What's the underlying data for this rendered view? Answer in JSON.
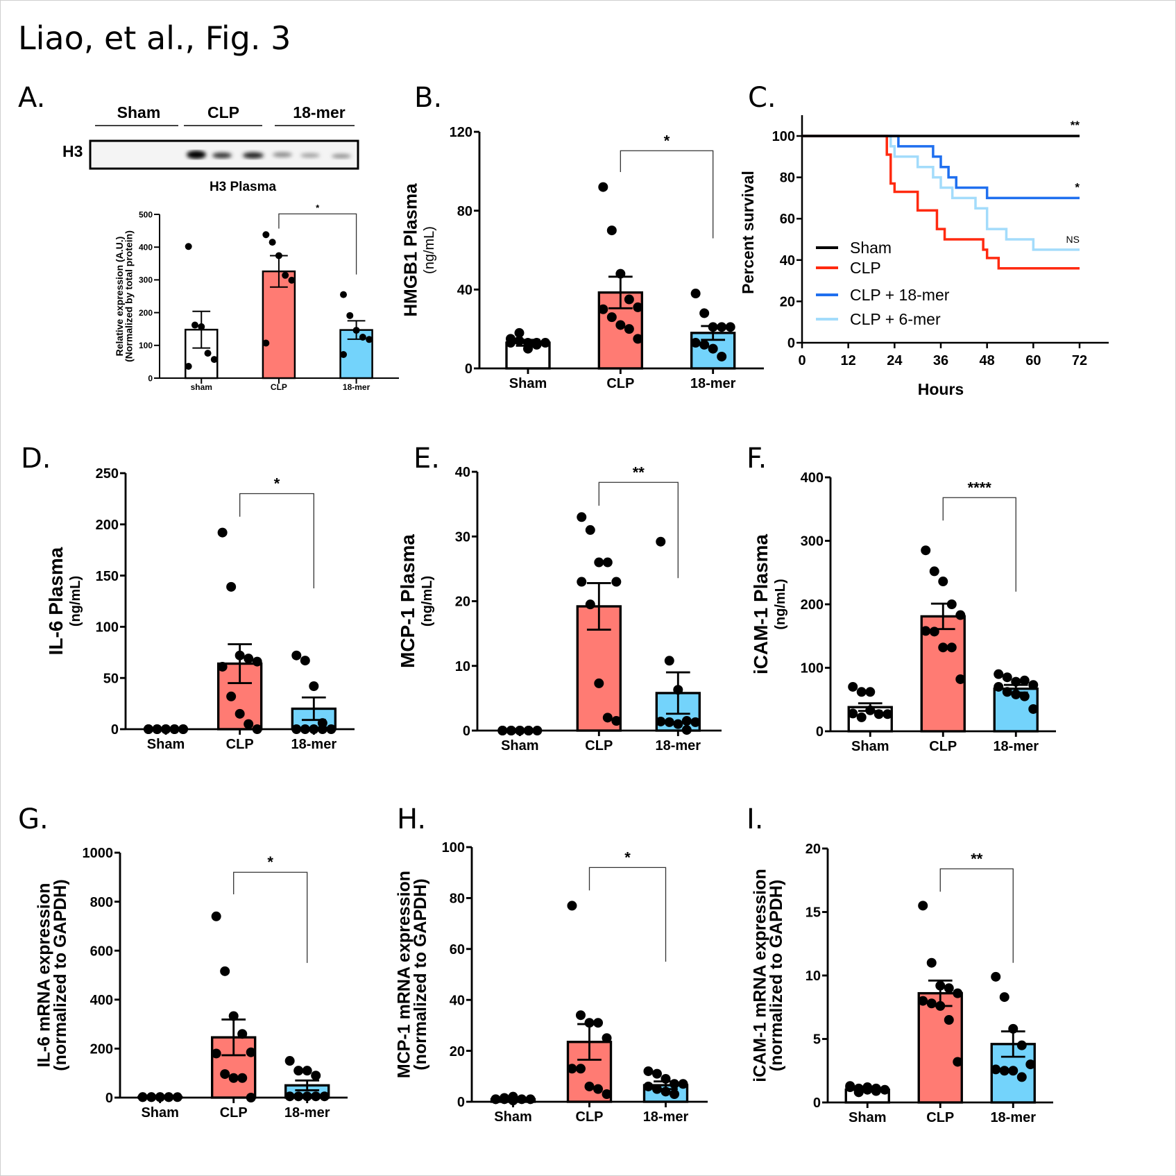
{
  "figure_title": "Liao, et al., Fig. 3",
  "colors": {
    "sham": "#ffffff",
    "clp": "#ff7b73",
    "mer18": "#73d3fb",
    "survival_sham": "#000000",
    "survival_clp": "#ff2a10",
    "survival_18mer": "#1f6fef",
    "survival_6mer": "#a3dcfb"
  },
  "blot": {
    "letter": "A.",
    "groups": [
      "Sham",
      "CLP",
      "18-mer"
    ],
    "band_label": "H3",
    "caption": "H3 Plasma"
  },
  "chart_data": [
    {
      "id": "A",
      "letter": "",
      "type": "bar",
      "title": "",
      "ylabel": "Relative expression (A.U.)",
      "ylabel2": "(Normalized by total protein)",
      "categories": [
        "sham",
        "CLP",
        "18-mer"
      ],
      "ylim": [
        0,
        500
      ],
      "yticks": [
        0,
        100,
        200,
        300,
        400,
        500
      ],
      "means": [
        148,
        326,
        147
      ],
      "sem": [
        56,
        48,
        28
      ],
      "points": [
        [
          402,
          162,
          157,
          76,
          57,
          36
        ],
        [
          438,
          415,
          374,
          314,
          299,
          107
        ],
        [
          255,
          191,
          146,
          125,
          118,
          72
        ]
      ],
      "significance": {
        "from": 1,
        "to": 2,
        "label": "*"
      }
    },
    {
      "id": "B",
      "letter": "B.",
      "type": "bar",
      "ylabel": "HMGB1 Plasma",
      "ylabel2": "(ng/mL)",
      "categories": [
        "Sham",
        "CLP",
        "18-mer"
      ],
      "ylim": [
        0,
        120
      ],
      "yticks": [
        0,
        40,
        80,
        120
      ],
      "means": [
        13,
        38.5,
        18
      ],
      "sem": [
        1.5,
        8,
        3.5
      ],
      "points": [
        [
          15,
          18,
          13,
          13,
          13,
          13,
          14,
          10,
          12
        ],
        [
          92,
          70,
          48,
          35,
          31,
          30,
          26,
          22,
          20,
          15
        ],
        [
          38,
          28,
          21,
          21,
          21,
          13,
          12,
          10,
          6
        ]
      ],
      "significance": {
        "from": 1,
        "to": 2,
        "label": "*"
      }
    },
    {
      "id": "C",
      "letter": "C.",
      "type": "line",
      "ylabel": "Percent survival",
      "xlabel": "Hours",
      "xlim": [
        0,
        72
      ],
      "xticks": [
        0,
        12,
        24,
        36,
        48,
        60,
        72
      ],
      "ylim": [
        0,
        100
      ],
      "yticks": [
        0,
        20,
        40,
        60,
        80,
        100
      ],
      "legend": "center-left",
      "series": [
        {
          "name": "Sham",
          "color_key": "survival_sham",
          "annotation": "**",
          "steps": [
            [
              0,
              100
            ],
            [
              72,
              100
            ]
          ]
        },
        {
          "name": "CLP",
          "color_key": "survival_clp",
          "annotation": "",
          "steps": [
            [
              0,
              100
            ],
            [
              22,
              100
            ],
            [
              22,
              91
            ],
            [
              23,
              91
            ],
            [
              23,
              77
            ],
            [
              24,
              77
            ],
            [
              24,
              73
            ],
            [
              30,
              73
            ],
            [
              30,
              64
            ],
            [
              35,
              64
            ],
            [
              35,
              55
            ],
            [
              37,
              55
            ],
            [
              37,
              50
            ],
            [
              47,
              50
            ],
            [
              47,
              45
            ],
            [
              48,
              45
            ],
            [
              48,
              41
            ],
            [
              51,
              41
            ],
            [
              51,
              36
            ],
            [
              72,
              36
            ]
          ]
        },
        {
          "name": "CLP + 18-mer",
          "color_key": "survival_18mer",
          "annotation": "*",
          "steps": [
            [
              0,
              100
            ],
            [
              25,
              100
            ],
            [
              25,
              95
            ],
            [
              34,
              95
            ],
            [
              34,
              90
            ],
            [
              36,
              90
            ],
            [
              36,
              85
            ],
            [
              38,
              85
            ],
            [
              38,
              80
            ],
            [
              40,
              80
            ],
            [
              40,
              75
            ],
            [
              48,
              75
            ],
            [
              48,
              70
            ],
            [
              72,
              70
            ]
          ]
        },
        {
          "name": "CLP + 6-mer",
          "color_key": "survival_6mer",
          "annotation": "NS",
          "steps": [
            [
              0,
              100
            ],
            [
              23,
              100
            ],
            [
              23,
              95
            ],
            [
              24,
              95
            ],
            [
              24,
              90
            ],
            [
              30,
              90
            ],
            [
              30,
              85
            ],
            [
              34,
              85
            ],
            [
              34,
              80
            ],
            [
              36,
              80
            ],
            [
              36,
              75
            ],
            [
              39,
              75
            ],
            [
              39,
              70
            ],
            [
              45,
              70
            ],
            [
              45,
              65
            ],
            [
              48,
              65
            ],
            [
              48,
              55
            ],
            [
              53,
              55
            ],
            [
              53,
              50
            ],
            [
              60,
              50
            ],
            [
              60,
              45
            ],
            [
              72,
              45
            ]
          ]
        }
      ]
    },
    {
      "id": "D",
      "letter": "D.",
      "type": "bar",
      "ylabel": "IL-6 Plasma",
      "ylabel2": "(ng/mL)",
      "categories": [
        "Sham",
        "CLP",
        "18-mer"
      ],
      "ylim": [
        0,
        250
      ],
      "yticks": [
        0,
        50,
        100,
        150,
        200,
        250
      ],
      "means": [
        0,
        64,
        20
      ],
      "sem": [
        0,
        19,
        11
      ],
      "points": [
        [
          0,
          0,
          0,
          0,
          0,
          0,
          0,
          0,
          0,
          0
        ],
        [
          192,
          139,
          72,
          69,
          66,
          61,
          32,
          15,
          5,
          0
        ],
        [
          72,
          67,
          42,
          6,
          0,
          0,
          0,
          0,
          0
        ]
      ],
      "significance": {
        "from": 1,
        "to": 2,
        "label": "*"
      }
    },
    {
      "id": "E",
      "letter": "E.",
      "type": "bar",
      "ylabel": "MCP-1 Plasma",
      "ylabel2": "(ng/mL)",
      "categories": [
        "Sham",
        "CLP",
        "18-mer"
      ],
      "ylim": [
        0,
        40
      ],
      "yticks": [
        0,
        10,
        20,
        30,
        40
      ],
      "means": [
        0,
        19.2,
        5.8
      ],
      "sem": [
        0,
        3.6,
        3.2
      ],
      "points": [
        [
          0,
          0,
          0,
          0,
          0,
          0,
          0,
          0,
          0
        ],
        [
          33,
          31,
          26,
          26,
          23,
          23,
          19.5,
          7.3,
          2,
          1.5
        ],
        [
          29.2,
          10.8,
          6.3,
          1.5,
          1.3,
          1.4,
          1.3,
          1,
          0.1
        ]
      ],
      "significance": {
        "from": 1,
        "to": 2,
        "label": "**"
      }
    },
    {
      "id": "F",
      "letter": "F.",
      "type": "bar",
      "ylabel": "iCAM-1 Plasma",
      "ylabel2": "(ng/mL)",
      "categories": [
        "Sham",
        "CLP",
        "18-mer"
      ],
      "ylim": [
        0,
        400
      ],
      "yticks": [
        0,
        100,
        200,
        300,
        400
      ],
      "means": [
        38,
        181,
        67
      ],
      "sem": [
        6,
        20,
        6
      ],
      "points": [
        [
          70,
          62,
          62,
          27,
          27,
          28,
          22,
          33
        ],
        [
          285,
          252,
          236,
          200,
          183,
          158,
          157,
          132,
          132,
          82
        ],
        [
          90,
          85,
          78,
          80,
          73,
          70,
          62,
          58,
          55,
          35
        ]
      ],
      "significance": {
        "from": 1,
        "to": 2,
        "label": "****"
      }
    },
    {
      "id": "G",
      "letter": "G.",
      "type": "bar",
      "ylabel": "IL-6 mRNA expression",
      "ylabel2": "(normalized to GAPDH)",
      "categories": [
        "Sham",
        "CLP",
        "18-mer"
      ],
      "ylim": [
        0,
        1000
      ],
      "yticks": [
        0,
        200,
        400,
        600,
        800,
        1000
      ],
      "means": [
        2,
        246,
        50
      ],
      "sem": [
        0.5,
        73,
        20
      ],
      "points": [
        [
          2,
          2,
          2,
          2,
          2,
          2,
          2,
          2,
          2
        ],
        [
          740,
          516,
          333,
          260,
          185,
          180,
          96,
          80,
          80,
          0
        ],
        [
          150,
          110,
          110,
          90,
          5,
          5,
          5,
          5,
          5
        ]
      ],
      "significance": {
        "from": 1,
        "to": 2,
        "label": "*"
      }
    },
    {
      "id": "H",
      "letter": "H.",
      "type": "bar",
      "ylabel": "MCP-1 mRNA expression",
      "ylabel2": "(normalized to GAPDH)",
      "categories": [
        "Sham",
        "CLP",
        "18-mer"
      ],
      "ylim": [
        0,
        100
      ],
      "yticks": [
        0,
        20,
        40,
        60,
        80,
        100
      ],
      "means": [
        1,
        23.5,
        6.5
      ],
      "sem": [
        0.2,
        7,
        1.5
      ],
      "points": [
        [
          1,
          1.5,
          2,
          1,
          1,
          1,
          1,
          0.5
        ],
        [
          77,
          34,
          31,
          31,
          25,
          13,
          13,
          6,
          5,
          3
        ],
        [
          12,
          11,
          9,
          7,
          7,
          6,
          5,
          4,
          3
        ]
      ],
      "significance": {
        "from": 1,
        "to": 2,
        "label": "*"
      }
    },
    {
      "id": "I",
      "letter": "I.",
      "type": "bar",
      "ylabel": "iCAM-1 mRNA expression",
      "ylabel2": "(normalized to GAPDH)",
      "categories": [
        "Sham",
        "CLP",
        "18-mer"
      ],
      "ylim": [
        0,
        20
      ],
      "yticks": [
        0,
        5,
        10,
        15,
        20
      ],
      "means": [
        1,
        8.6,
        4.6
      ],
      "sem": [
        0.1,
        1,
        1
      ],
      "points": [
        [
          1.3,
          1.1,
          1.2,
          0.9,
          1.0,
          1.2,
          0.8,
          1.0,
          1.1
        ],
        [
          15.5,
          11,
          9.2,
          9,
          8.6,
          8,
          7.8,
          7.6,
          6.5,
          3.2
        ],
        [
          9.9,
          8.3,
          5.8,
          4.5,
          3,
          2.6,
          2.5,
          2.5,
          2
        ]
      ],
      "significance": {
        "from": 1,
        "to": 2,
        "label": "**"
      }
    }
  ]
}
